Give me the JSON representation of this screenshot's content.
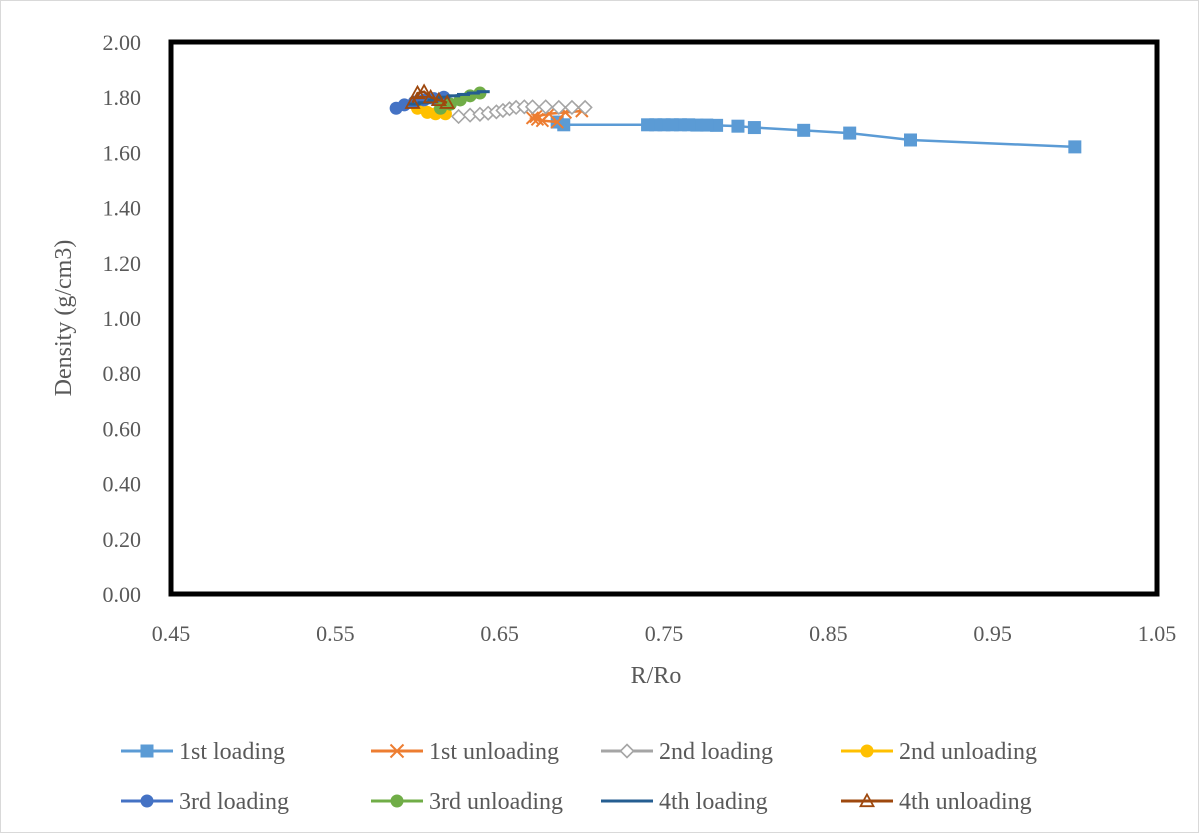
{
  "chart_data": {
    "type": "line",
    "title": "",
    "xlabel": "R/Ro",
    "ylabel": "Density (g/cm3)",
    "xlim": [
      0.45,
      1.05
    ],
    "ylim": [
      0,
      2
    ],
    "x_ticks": [
      0.45,
      0.55,
      0.65,
      0.75,
      0.85,
      0.95,
      1.05
    ],
    "x_tick_labels": [
      "0.45",
      "0.55",
      "0.65",
      "0.75",
      "0.85",
      "0.95",
      "1.05"
    ],
    "y_ticks": [
      0,
      0.2,
      0.4,
      0.6,
      0.8,
      1.0,
      1.2,
      1.4,
      1.6,
      1.8,
      2.0
    ],
    "y_tick_labels": [
      "0.00",
      "0.20",
      "0.40",
      "0.60",
      "0.80",
      "1.00",
      "1.20",
      "1.40",
      "1.60",
      "1.80",
      "2.00"
    ],
    "grid": false,
    "legend_position": "bottom",
    "series": [
      {
        "name": "1st loading",
        "color": "#5b9bd5",
        "marker": "square",
        "x": [
          1.0,
          0.9,
          0.863,
          0.835,
          0.805,
          0.795,
          0.782,
          0.776,
          0.77,
          0.765,
          0.76,
          0.755,
          0.75,
          0.745,
          0.74,
          0.689,
          0.685
        ],
        "y": [
          1.62,
          1.645,
          1.67,
          1.68,
          1.69,
          1.695,
          1.698,
          1.699,
          1.699,
          1.7,
          1.7,
          1.7,
          1.7,
          1.7,
          1.7,
          1.7,
          1.71
        ]
      },
      {
        "name": "1st unloading",
        "color": "#ed7d31",
        "marker": "x",
        "x": [
          0.685,
          0.676,
          0.673,
          0.67,
          0.672,
          0.68,
          0.69,
          0.7
        ],
        "y": [
          1.71,
          1.715,
          1.72,
          1.725,
          1.73,
          1.74,
          1.745,
          1.75
        ]
      },
      {
        "name": "2nd loading",
        "color": "#a5a5a5",
        "marker": "diamond",
        "x": [
          0.625,
          0.632,
          0.638,
          0.643,
          0.648,
          0.652,
          0.656,
          0.66,
          0.665,
          0.67,
          0.678,
          0.686,
          0.694,
          0.702
        ],
        "y": [
          1.73,
          1.735,
          1.738,
          1.742,
          1.747,
          1.752,
          1.758,
          1.763,
          1.765,
          1.765,
          1.765,
          1.763,
          1.763,
          1.763
        ]
      },
      {
        "name": "2nd unloading",
        "color": "#ffc000",
        "marker": "circle",
        "x": [
          0.6,
          0.606,
          0.611,
          0.617
        ],
        "y": [
          1.76,
          1.745,
          1.74,
          1.74
        ]
      },
      {
        "name": "3rd loading",
        "color": "#4472c4",
        "marker": "circle",
        "x": [
          0.587,
          0.592,
          0.598,
          0.604,
          0.61,
          0.616
        ],
        "y": [
          1.76,
          1.772,
          1.782,
          1.79,
          1.795,
          1.8
        ]
      },
      {
        "name": "3rd unloading",
        "color": "#70ad47",
        "marker": "circle",
        "x": [
          0.614,
          0.62,
          0.626,
          0.632,
          0.638
        ],
        "y": [
          1.76,
          1.775,
          1.79,
          1.805,
          1.815
        ]
      },
      {
        "name": "4th loading",
        "color": "#255e91",
        "marker": "dash",
        "x": [
          0.598,
          0.604,
          0.61,
          0.616,
          0.622,
          0.628,
          0.634,
          0.64
        ],
        "y": [
          1.775,
          1.78,
          1.79,
          1.8,
          1.805,
          1.81,
          1.815,
          1.82
        ]
      },
      {
        "name": "4th unloading",
        "color": "#9e480e",
        "marker": "triangle",
        "x": [
          0.597,
          0.6,
          0.604,
          0.608,
          0.613,
          0.618
        ],
        "y": [
          1.78,
          1.815,
          1.82,
          1.8,
          1.79,
          1.78
        ]
      }
    ]
  }
}
